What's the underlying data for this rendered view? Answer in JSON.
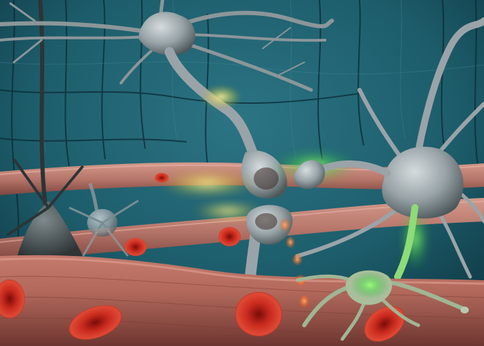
{
  "scene": {
    "kind": "3d-render-illustration",
    "subjects": [
      "neurons",
      "blood-vessels",
      "red-blood-cells",
      "synaptic-signal-glow"
    ],
    "palette": {
      "background_teal": "#1d5d6b",
      "background_dark": "#0c2f3a",
      "neuron_gray": "#9aa4a8",
      "neuron_shadow": "#4a5457",
      "vessel_pink": "#c98a7d",
      "vessel_dark": "#8a4f47",
      "rbc_red": "#c2261c",
      "glow_green": "#5de05a",
      "glow_yellow": "#e8e06a",
      "glow_orange": "#ff7a2a"
    }
  }
}
